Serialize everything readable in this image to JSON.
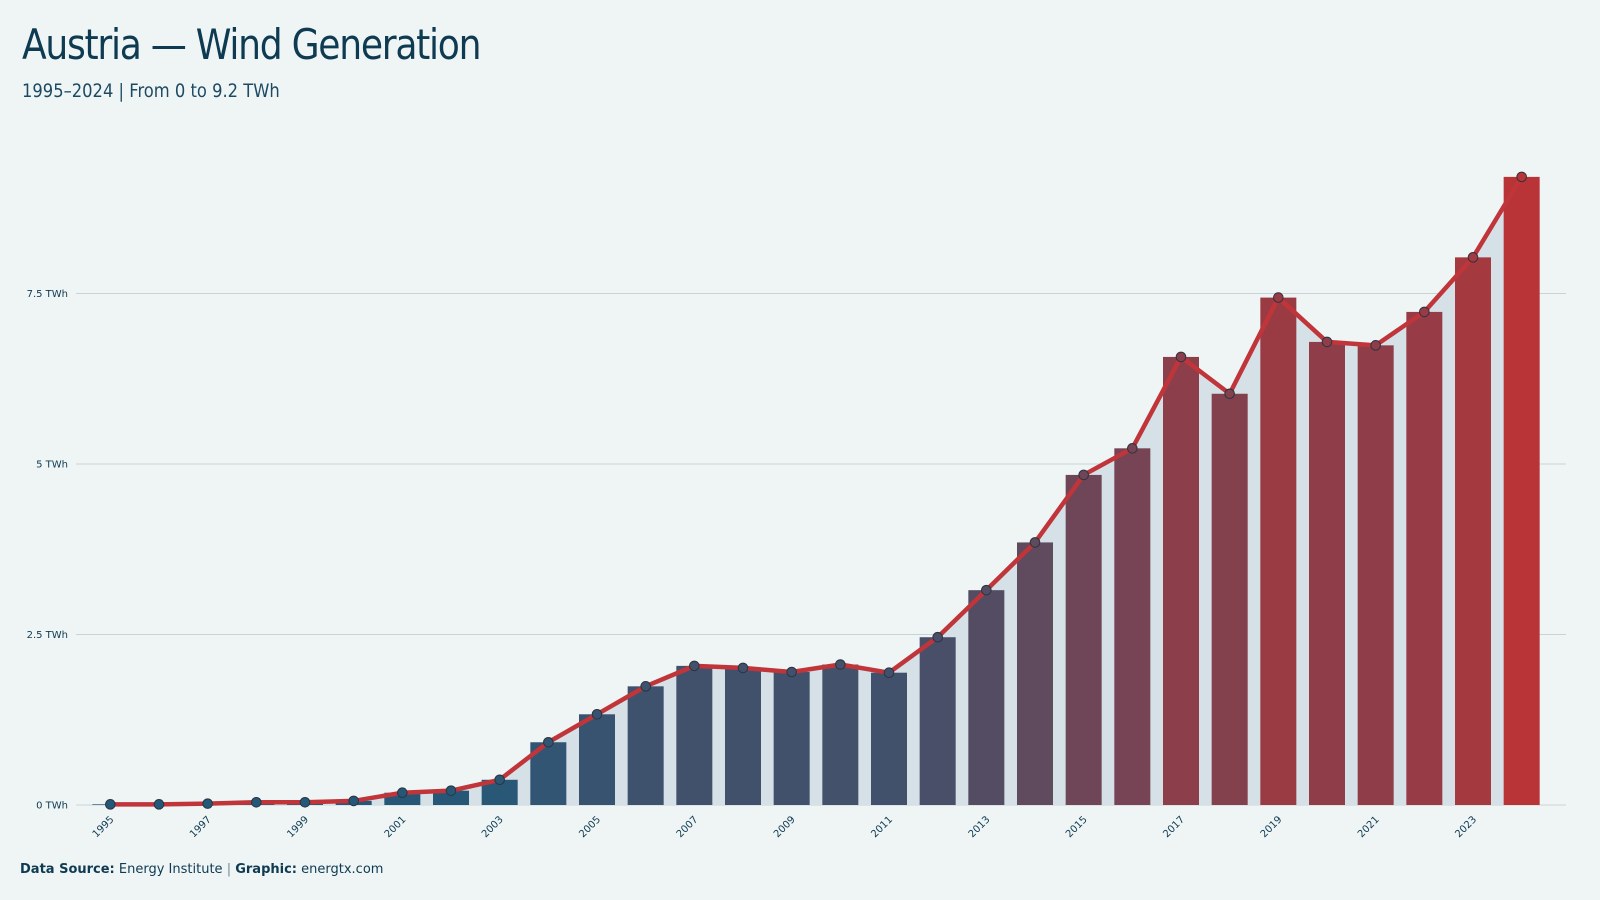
{
  "title": "Austria — Wind Generation",
  "subtitle": "1995–2024 | From 0 to 9.2 TWh",
  "footer": {
    "source_label": "Data Source:",
    "source_value": "Energy Institute",
    "separator": "|",
    "graphic_label": "Graphic:",
    "graphic_value": "energtx.com"
  },
  "colors": {
    "background": "#eff5f5",
    "bar_start": "#245878",
    "bar_end": "#b83437",
    "line": "#c0353a",
    "area_fill": "#d6e1e7",
    "grid": "#c9d3d7",
    "text": "#0e3a52"
  },
  "chart_data": {
    "type": "bar",
    "title": "Austria — Wind Generation",
    "subtitle": "1995–2024 | From 0 to 9.2 TWh",
    "x": [
      "1995",
      "1996",
      "1997",
      "1998",
      "1999",
      "2000",
      "2001",
      "2002",
      "2003",
      "2004",
      "2005",
      "2006",
      "2007",
      "2008",
      "2009",
      "2010",
      "2011",
      "2012",
      "2013",
      "2014",
      "2015",
      "2016",
      "2017",
      "2018",
      "2019",
      "2020",
      "2021",
      "2022",
      "2023",
      "2024"
    ],
    "x_tick_labels": [
      "1995",
      "1997",
      "1999",
      "2001",
      "2003",
      "2005",
      "2007",
      "2009",
      "2011",
      "2013",
      "2015",
      "2017",
      "2019",
      "2021",
      "2023"
    ],
    "series": [
      {
        "values": [
          0.01,
          0.01,
          0.02,
          0.04,
          0.04,
          0.06,
          0.18,
          0.21,
          0.37,
          0.92,
          1.33,
          1.74,
          2.04,
          2.01,
          1.95,
          2.06,
          1.94,
          2.46,
          3.15,
          3.85,
          4.84,
          5.23,
          6.57,
          6.03,
          7.44,
          6.79,
          6.74,
          7.23,
          8.03,
          9.21
        ]
      }
    ],
    "y_ticks": [
      0,
      2.5,
      5,
      7.5
    ],
    "y_tick_labels": [
      "0 TWh",
      "2.5 TWh",
      "5 TWh",
      "7.5 TWh"
    ],
    "ylim": [
      0,
      9.6
    ],
    "unit": "TWh",
    "overlay": "line-with-markers",
    "grid": true,
    "legend": "none"
  }
}
